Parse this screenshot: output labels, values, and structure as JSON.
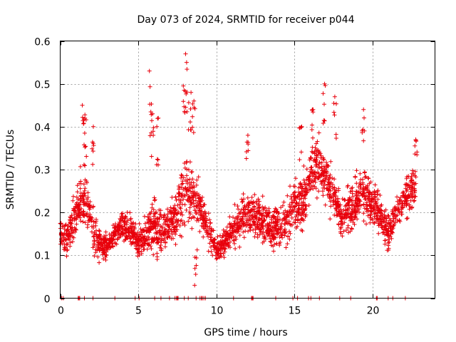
{
  "chart_data": {
    "type": "scatter",
    "title": "Day 073 of 2024, SRMTID for receiver p044",
    "xlabel": "GPS time / hours",
    "ylabel": "SRMTID / TECUs",
    "xlim": [
      0,
      24
    ],
    "ylim": [
      0,
      0.6
    ],
    "xticks": [
      0,
      5,
      10,
      15,
      20
    ],
    "yticks": [
      0,
      0.1,
      0.2,
      0.3,
      0.4,
      0.5,
      0.6
    ],
    "xtick_labels": [
      "0",
      "5",
      "10",
      "15",
      "20"
    ],
    "ytick_labels": [
      "0",
      "0.1",
      "0.2",
      "0.3",
      "0.4",
      "0.5",
      "0.6"
    ],
    "grid": true,
    "marker": "plus",
    "color": "#e8000b",
    "series": [
      {
        "name": "SRMTID p044",
        "envelope": [
          [
            0.0,
            0.15
          ],
          [
            0.5,
            0.14
          ],
          [
            1.0,
            0.2
          ],
          [
            1.5,
            0.24
          ],
          [
            2.0,
            0.18
          ],
          [
            2.5,
            0.13
          ],
          [
            3.0,
            0.12
          ],
          [
            3.5,
            0.15
          ],
          [
            4.0,
            0.17
          ],
          [
            4.5,
            0.16
          ],
          [
            5.0,
            0.13
          ],
          [
            5.5,
            0.15
          ],
          [
            6.0,
            0.17
          ],
          [
            6.5,
            0.16
          ],
          [
            7.0,
            0.17
          ],
          [
            7.5,
            0.19
          ],
          [
            8.0,
            0.26
          ],
          [
            8.5,
            0.24
          ],
          [
            9.0,
            0.2
          ],
          [
            9.5,
            0.16
          ],
          [
            10.0,
            0.11
          ],
          [
            10.5,
            0.13
          ],
          [
            11.0,
            0.15
          ],
          [
            11.5,
            0.18
          ],
          [
            12.0,
            0.21
          ],
          [
            12.5,
            0.19
          ],
          [
            13.0,
            0.18
          ],
          [
            13.5,
            0.16
          ],
          [
            14.0,
            0.17
          ],
          [
            14.5,
            0.18
          ],
          [
            15.0,
            0.23
          ],
          [
            15.5,
            0.22
          ],
          [
            16.0,
            0.28
          ],
          [
            16.5,
            0.31
          ],
          [
            17.0,
            0.28
          ],
          [
            17.5,
            0.24
          ],
          [
            18.0,
            0.19
          ],
          [
            18.5,
            0.2
          ],
          [
            19.0,
            0.23
          ],
          [
            19.5,
            0.24
          ],
          [
            20.0,
            0.22
          ],
          [
            20.5,
            0.2
          ],
          [
            21.0,
            0.15
          ],
          [
            21.5,
            0.2
          ],
          [
            22.0,
            0.23
          ],
          [
            22.5,
            0.25
          ],
          [
            22.8,
            0.27
          ]
        ],
        "spread": [
          [
            0.0,
            0.05
          ],
          [
            1.5,
            0.12
          ],
          [
            3.0,
            0.05
          ],
          [
            5.0,
            0.06
          ],
          [
            6.0,
            0.12
          ],
          [
            7.0,
            0.07
          ],
          [
            8.0,
            0.16
          ],
          [
            8.5,
            0.12
          ],
          [
            9.5,
            0.07
          ],
          [
            10.0,
            0.05
          ],
          [
            12.0,
            0.09
          ],
          [
            13.0,
            0.08
          ],
          [
            15.0,
            0.1
          ],
          [
            16.5,
            0.12
          ],
          [
            18.0,
            0.08
          ],
          [
            19.5,
            0.11
          ],
          [
            21.0,
            0.07
          ],
          [
            22.8,
            0.08
          ]
        ],
        "peaks": [
          [
            1.5,
            0.45
          ],
          [
            1.6,
            0.42
          ],
          [
            2.1,
            0.4
          ],
          [
            5.8,
            0.53
          ],
          [
            5.9,
            0.43
          ],
          [
            6.2,
            0.42
          ],
          [
            7.95,
            0.57
          ],
          [
            8.05,
            0.55
          ],
          [
            8.3,
            0.48
          ],
          [
            8.55,
            0.46
          ],
          [
            8.7,
            0.03
          ],
          [
            12.0,
            0.38
          ],
          [
            15.4,
            0.4
          ],
          [
            16.2,
            0.44
          ],
          [
            16.9,
            0.5
          ],
          [
            17.6,
            0.47
          ],
          [
            19.4,
            0.44
          ],
          [
            22.8,
            0.37
          ]
        ],
        "zero_markers": [
          0.1,
          0.2,
          1.15,
          1.2,
          1.25,
          1.55,
          2.1,
          3.5,
          4.8,
          5.05,
          6.05,
          6.45,
          7.0,
          7.35,
          7.45,
          7.5,
          7.55,
          7.95,
          8.2,
          8.7,
          8.95,
          9.05,
          9.1,
          9.2,
          9.3,
          11.1,
          12.25,
          12.3,
          12.35,
          13.8,
          14.9,
          15.2,
          15.9,
          16.05,
          16.6,
          17.9,
          18.6,
          20.25,
          20.3,
          21.0,
          21.3,
          22.1
        ],
        "point_count": 2600
      }
    ]
  }
}
